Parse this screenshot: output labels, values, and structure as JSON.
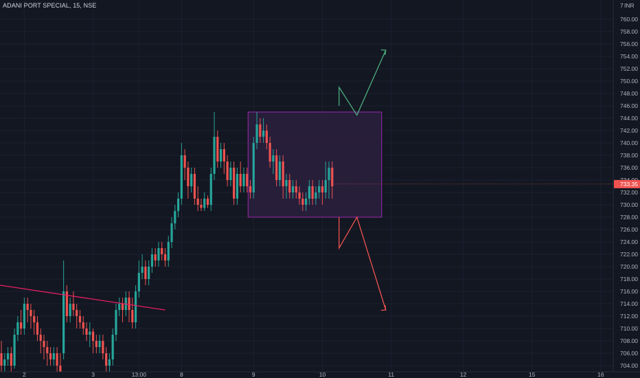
{
  "header": {
    "symbol_label": "ADANI PORT SPECIAL, 15, NSE"
  },
  "price_axis": {
    "currency": "INR",
    "top_partial": "7",
    "ticks": [
      "760.00",
      "758.00",
      "756.00",
      "754.00",
      "752.00",
      "750.00",
      "748.00",
      "746.00",
      "744.00",
      "742.00",
      "740.00",
      "738.00",
      "736.00",
      "734.00",
      "732.00",
      "730.00",
      "728.00",
      "726.00",
      "724.00",
      "722.00",
      "720.00",
      "718.00",
      "716.00",
      "714.00",
      "712.00",
      "710.00",
      "708.00",
      "706.00",
      "704.00"
    ],
    "current_price_label": "733.35"
  },
  "time_axis": {
    "labels": [
      "2",
      "3",
      "13:00",
      "8",
      "9",
      "10",
      "11",
      "12",
      "15",
      "16"
    ]
  },
  "colors": {
    "background": "#131722",
    "up": "#26a69a",
    "down": "#ef5350",
    "box_border": "#9c27b0",
    "box_fill": "#2a1f3d",
    "trendline": "#e91e63",
    "arrow_up": "#4caf7d",
    "arrow_down": "#ef5350"
  },
  "chart_data": {
    "type": "candlestick",
    "title": "ADANI PORT SPECIAL, 15, NSE",
    "ylim": [
      703,
      762
    ],
    "y_unit": "INR",
    "candles": [
      [
        706,
        704,
        708,
        703
      ],
      [
        704,
        705,
        706,
        703
      ],
      [
        705,
        706,
        707,
        704
      ],
      [
        706,
        704,
        707,
        703
      ],
      [
        704,
        709,
        710,
        703.5
      ],
      [
        709,
        711,
        712,
        708
      ],
      [
        711,
        710,
        713,
        709
      ],
      [
        710,
        714,
        715,
        709
      ],
      [
        714,
        713,
        715,
        711
      ],
      [
        713,
        712,
        714,
        710
      ],
      [
        712,
        711,
        713,
        709
      ],
      [
        711,
        709,
        712,
        708
      ],
      [
        709,
        708,
        710,
        706
      ],
      [
        708,
        707,
        709,
        705
      ],
      [
        707,
        706,
        708,
        704
      ],
      [
        706,
        705,
        707,
        704
      ],
      [
        705,
        706,
        707,
        704
      ],
      [
        706,
        704,
        707,
        703
      ],
      [
        704,
        703,
        706,
        703
      ],
      [
        706,
        716,
        721,
        705
      ],
      [
        716,
        712,
        717,
        711
      ],
      [
        712,
        714,
        715,
        711
      ],
      [
        714,
        713,
        716,
        712
      ],
      [
        713,
        712,
        714,
        710
      ],
      [
        712,
        711,
        713,
        710
      ],
      [
        711,
        710,
        712,
        709
      ],
      [
        710,
        709,
        711,
        708
      ],
      [
        709,
        709.5,
        711,
        707
      ],
      [
        709.5,
        708,
        710,
        706
      ],
      [
        708,
        707,
        709,
        706
      ],
      [
        707,
        708,
        709,
        706
      ],
      [
        708,
        706,
        709,
        705
      ],
      [
        706,
        704,
        707,
        703
      ],
      [
        704,
        705,
        706,
        703
      ],
      [
        705,
        709,
        710,
        704
      ],
      [
        709,
        713,
        714,
        708
      ],
      [
        713,
        714,
        715,
        712
      ],
      [
        714,
        713,
        715,
        711
      ],
      [
        713,
        715,
        716,
        712
      ],
      [
        715,
        713,
        716,
        711
      ],
      [
        713,
        711,
        715,
        710
      ],
      [
        711,
        716,
        717,
        710
      ],
      [
        716,
        719,
        721,
        715
      ],
      [
        719,
        720,
        722,
        718
      ],
      [
        720,
        718,
        721,
        717
      ],
      [
        718,
        720,
        721,
        717
      ],
      [
        720,
        722,
        723,
        719
      ],
      [
        722,
        721,
        723,
        720
      ],
      [
        721,
        723,
        724,
        720
      ],
      [
        723,
        722,
        724,
        721
      ],
      [
        722,
        721,
        723,
        720
      ],
      [
        721,
        724,
        725,
        720
      ],
      [
        724,
        727,
        728,
        723
      ],
      [
        727,
        729,
        730,
        726
      ],
      [
        729,
        731,
        732,
        728
      ],
      [
        731,
        738,
        740,
        730
      ],
      [
        738,
        736,
        739,
        734
      ],
      [
        736,
        733,
        737,
        731
      ],
      [
        733,
        735,
        736,
        732
      ],
      [
        735,
        731,
        736,
        730
      ],
      [
        731,
        730,
        733,
        729
      ],
      [
        730,
        729.5,
        731,
        729
      ],
      [
        729.5,
        731,
        732,
        729
      ],
      [
        731,
        730,
        731.5,
        729.5
      ],
      [
        730,
        735,
        736,
        729
      ],
      [
        735,
        741,
        745,
        734
      ],
      [
        741,
        737,
        742,
        736
      ],
      [
        737,
        739,
        740,
        736
      ],
      [
        739,
        737,
        740,
        735
      ],
      [
        737,
        734,
        738,
        733
      ],
      [
        734,
        736,
        737,
        733
      ],
      [
        736,
        731,
        737,
        730
      ],
      [
        731,
        735,
        736,
        730
      ],
      [
        735,
        733,
        737,
        732
      ],
      [
        733,
        735,
        736,
        732
      ],
      [
        735,
        733,
        736,
        732
      ],
      [
        733,
        732,
        734,
        731
      ],
      [
        732,
        740,
        741,
        731
      ],
      [
        740,
        743,
        745,
        739
      ],
      [
        743,
        741,
        744,
        740
      ],
      [
        741,
        742,
        744,
        740
      ],
      [
        742,
        740,
        743,
        739
      ],
      [
        740,
        737,
        741,
        736
      ],
      [
        737,
        738,
        739,
        735
      ],
      [
        738,
        734,
        739,
        733
      ],
      [
        734,
        737,
        738,
        733
      ],
      [
        737,
        733,
        738,
        731
      ],
      [
        733,
        734,
        735,
        731
      ],
      [
        734,
        732,
        735,
        731
      ],
      [
        732,
        733,
        734,
        731
      ],
      [
        733,
        732,
        734,
        731
      ],
      [
        732,
        731,
        733,
        730
      ],
      [
        731,
        730,
        732,
        729
      ],
      [
        730,
        731,
        732,
        729
      ],
      [
        731,
        733,
        734,
        730
      ],
      [
        733,
        731,
        734,
        730
      ],
      [
        731,
        732,
        733,
        730
      ],
      [
        732,
        733,
        734,
        731
      ],
      [
        733,
        732,
        734,
        730
      ],
      [
        732,
        734,
        737,
        731
      ],
      [
        734,
        736,
        737,
        731
      ],
      [
        736,
        733,
        737,
        731
      ]
    ],
    "consolidation_box": {
      "price_low": 728,
      "price_high": 745
    },
    "trendline": {
      "from_price": 717,
      "to_price": 713
    },
    "projection_up": [
      749,
      744.5,
      755
    ],
    "projection_down": [
      728,
      723,
      713
    ]
  }
}
